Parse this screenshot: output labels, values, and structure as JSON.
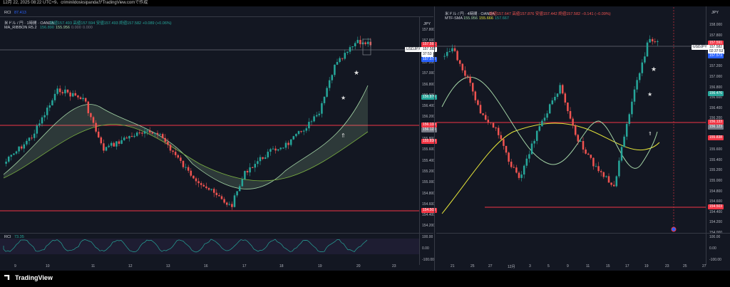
{
  "header": {
    "caption": "12月 22, 2025 08:22 UTC+9、criminildosksipandaがTradingView.comで作成"
  },
  "left": {
    "rci_top_label": "RCI",
    "rci_top_value": "87.413",
    "title": "米ドル / 円 · 1時間 · OANDA",
    "ohlc": "始値157.493  高値157.594  安値157.493  終値157.582  +0.089 (+0.06%)",
    "ribbon": "MA_RIBBON R5.2",
    "ribbon_vals": [
      "156.890",
      "155.956",
      "0.000",
      "0.000"
    ],
    "currency": "JPY",
    "price_ticks": [
      "157.800",
      "157.600",
      "157.400",
      "157.200",
      "157.000",
      "156.800",
      "156.600",
      "156.400",
      "156.200",
      "156.000",
      "155.800",
      "155.600",
      "155.400",
      "155.200",
      "155.000",
      "154.800",
      "154.600",
      "154.400",
      "154.200"
    ],
    "tag_ask": "157.591",
    "tag_symbol": "USDJPY",
    "tag_last": "157.582",
    "tag_countdown": "37:53",
    "tag_bid": "157.573",
    "tag_ma1": "156.876",
    "tag_line1": "156.133",
    "tag_ma2": "156.123",
    "tag_red2": "155.838",
    "tag_line2": "154.503",
    "rci_bottom_label": "RCI",
    "rci_bottom_value": "73.35",
    "rci_ticks": [
      "100.00",
      "0.00",
      "-100.00"
    ],
    "dates": [
      "9",
      "10",
      "11",
      "12",
      "13",
      "16",
      "17",
      "18",
      "19",
      "20",
      "23"
    ]
  },
  "right": {
    "title": "米ドル / 円 · 4時間 · OANDA",
    "ohlc": "始値157.647  高値157.876  安値157.442  終値157.582  −0.141 (−0.09%)",
    "ma_label": "MTF-SMA",
    "ma_vals": [
      "155.956",
      "155.666",
      "157.667"
    ],
    "currency": "JPY",
    "price_ticks": [
      "158.000",
      "157.800",
      "157.600",
      "157.400",
      "157.200",
      "157.000",
      "156.800",
      "156.600",
      "156.400",
      "156.200",
      "156.000",
      "155.800",
      "155.600",
      "155.400",
      "155.200",
      "155.000",
      "154.800",
      "154.600",
      "154.400",
      "154.200",
      "154.000"
    ],
    "tag_ask": "157.591",
    "tag_symbol": "USDJPY",
    "tag_last": "157.582",
    "tag_countdown": "02:37:53",
    "tag_bid": "157.573",
    "tag_ma1": "156.476",
    "tag_line1": "156.133",
    "tag_ma2": "156.123",
    "tag_red2": "155.838",
    "tag_line2": "154.503",
    "rci_ticks": [
      "100.00",
      "0.00",
      "-100.00"
    ],
    "dates": [
      "21",
      "25",
      "27",
      "12月",
      "3",
      "5",
      "9",
      "11",
      "15",
      "17",
      "19",
      "23",
      "25",
      "27"
    ]
  },
  "footer": {
    "brand": "TradingView"
  },
  "colors": {
    "bull": "#26a69a",
    "bear": "#ef5350",
    "level": "#f23645",
    "ribbon": "#a5d6a7",
    "sma": "#e6e63a"
  }
}
